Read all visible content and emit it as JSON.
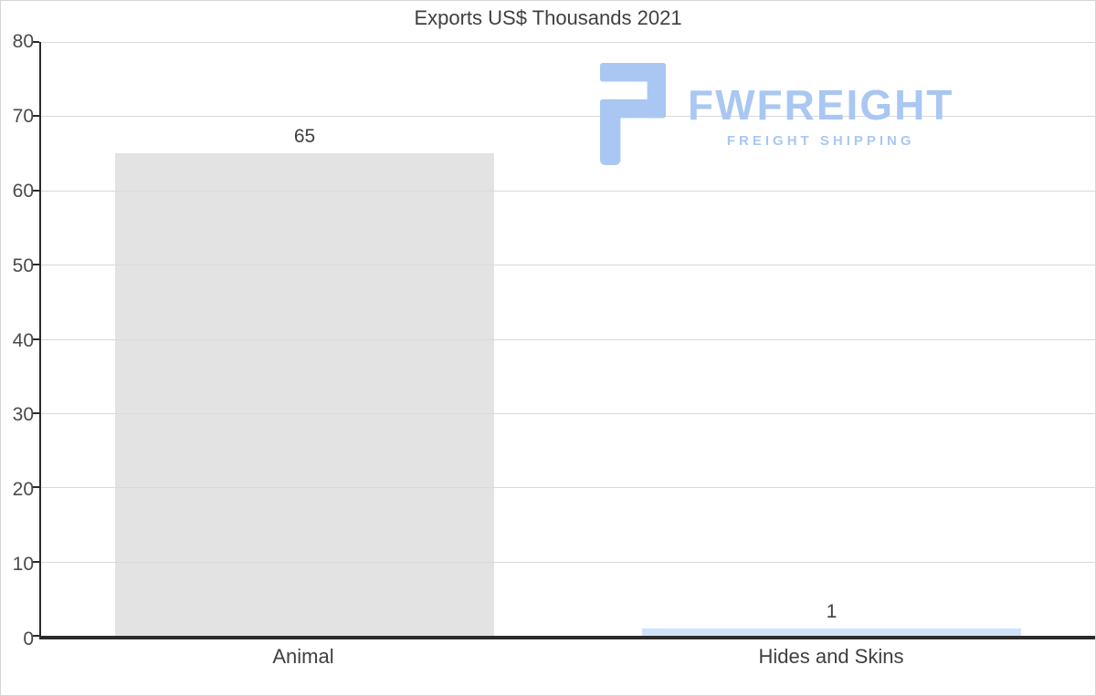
{
  "title": "Exports US$ Thousands 2021",
  "logo": {
    "name": "FWFREIGHT",
    "tagline": "FREIGHT SHIPPING",
    "color": "#a9c7f2"
  },
  "chart_data": {
    "type": "bar",
    "title": "Exports US$ Thousands 2021",
    "categories": [
      "Animal",
      "Hides and Skins"
    ],
    "values": [
      65,
      1
    ],
    "value_labels": [
      "65",
      "1"
    ],
    "xlabel": "",
    "ylabel": "",
    "ylim": [
      0,
      80
    ],
    "yticks": [
      0,
      10,
      20,
      30,
      40,
      50,
      60,
      70,
      80
    ],
    "grid": true,
    "legend": false,
    "bar_colors": [
      "#e3e3e3",
      "#cfe2f9"
    ],
    "gridline_color": "#d9d9d9",
    "axis_color": "#2b2b2b",
    "text_color": "#3f3f3f"
  }
}
